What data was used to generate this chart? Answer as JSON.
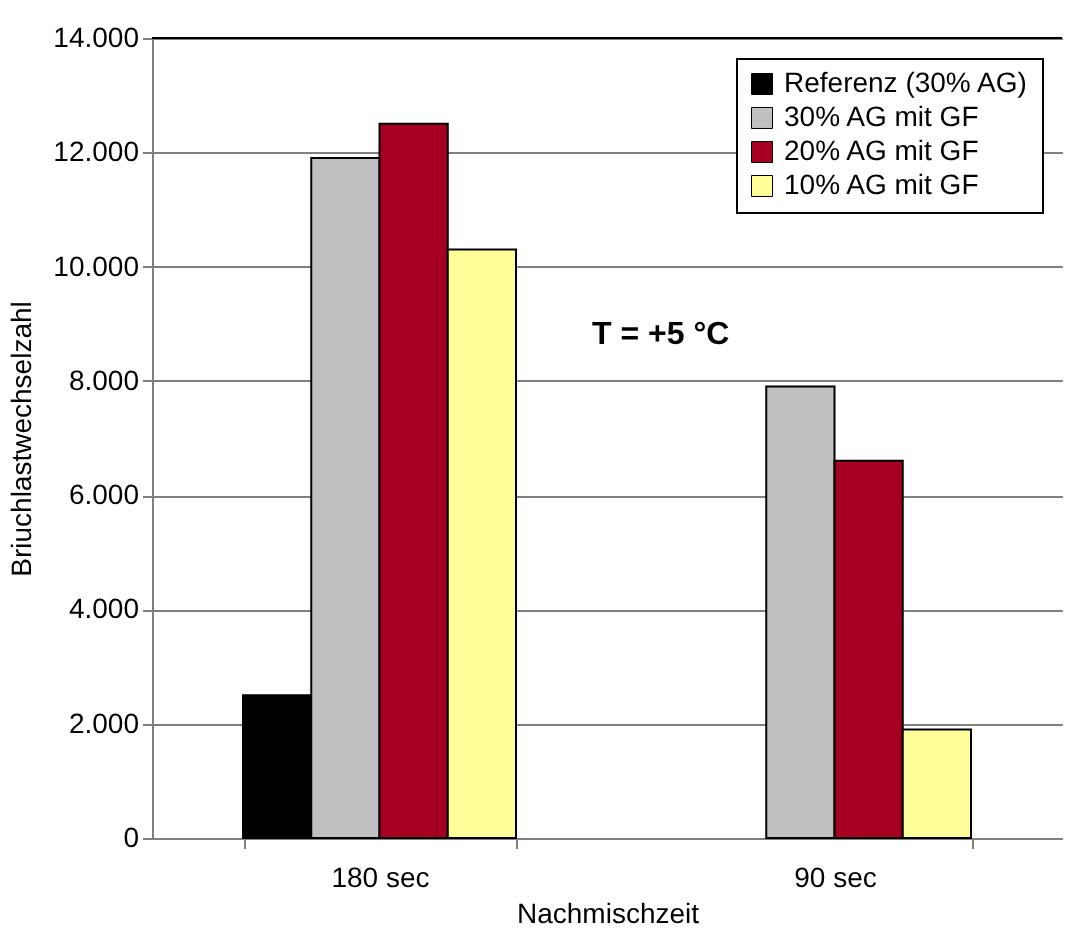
{
  "chart_data": {
    "type": "bar",
    "xlabel": "Nachmischzeit",
    "ylabel": "Briuchlastwechselzahl",
    "categories": [
      "180 sec",
      "90 sec"
    ],
    "series": [
      {
        "name": "Referenz (30% AG)",
        "color": "#000000",
        "values": [
          2500,
          null
        ]
      },
      {
        "name": "30% AG mit GF",
        "color": "#c0c0c0",
        "values": [
          11900,
          7900
        ]
      },
      {
        "name": "20% AG mit GF",
        "color": "#a50021",
        "values": [
          12500,
          6600
        ]
      },
      {
        "name": "10% AG mit GF",
        "color": "#ffff99",
        "values": [
          10300,
          1900
        ]
      }
    ],
    "ylim": [
      0,
      14000
    ],
    "yticks": [
      0,
      {
        "value": 2000,
        "label": "2.000"
      },
      {
        "value": 4000,
        "label": "4.000"
      },
      {
        "value": 6000,
        "label": "6.000"
      },
      {
        "value": 8000,
        "label": "8.000"
      },
      {
        "value": 10000,
        "label": "10.000"
      },
      {
        "value": 12000,
        "label": "12.000"
      },
      {
        "value": 14000,
        "label": "14.000"
      }
    ],
    "annotations": [
      "T = +5 °C"
    ],
    "grid": "y",
    "legend": "top right"
  }
}
